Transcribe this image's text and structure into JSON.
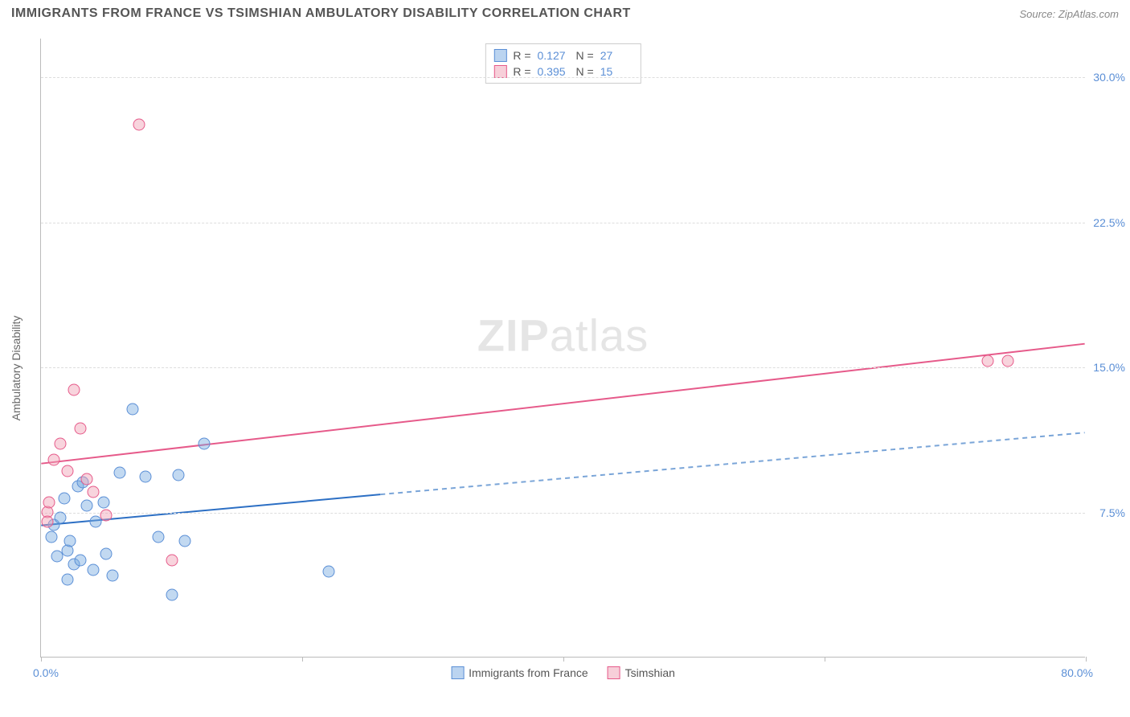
{
  "header": {
    "title": "IMMIGRANTS FROM FRANCE VS TSIMSHIAN AMBULATORY DISABILITY CORRELATION CHART",
    "source": "Source: ZipAtlas.com"
  },
  "chart": {
    "type": "scatter",
    "y_axis_label": "Ambulatory Disability",
    "x_range": [
      0,
      80
    ],
    "y_range": [
      0,
      32
    ],
    "x_labels": {
      "min": "0.0%",
      "max": "80.0%"
    },
    "y_ticks": [
      {
        "value": 7.5,
        "label": "7.5%"
      },
      {
        "value": 15.0,
        "label": "15.0%"
      },
      {
        "value": 22.5,
        "label": "22.5%"
      },
      {
        "value": 30.0,
        "label": "30.0%"
      }
    ],
    "x_tick_positions": [
      0,
      20,
      40,
      60,
      80
    ],
    "colors": {
      "blue_fill": "rgba(120,170,225,0.45)",
      "blue_stroke": "#5b8fd6",
      "pink_fill": "rgba(240,160,180,0.45)",
      "pink_stroke": "#e65a8a",
      "grid": "#ddd",
      "axis": "#bbb",
      "tick_text": "#5b8fd6",
      "label_text": "#666",
      "background": "#ffffff"
    },
    "watermark": {
      "part1": "ZIP",
      "part2": "atlas"
    },
    "legend_top": {
      "series": [
        {
          "color": "blue",
          "r_label": "R =",
          "r_value": "0.127",
          "n_label": "N =",
          "n_value": "27"
        },
        {
          "color": "pink",
          "r_label": "R =",
          "r_value": "0.395",
          "n_label": "N =",
          "n_value": "15"
        }
      ]
    },
    "legend_bottom": {
      "items": [
        {
          "color": "blue",
          "label": "Immigrants from France"
        },
        {
          "color": "pink",
          "label": "Tsimshian"
        }
      ]
    },
    "series_blue": {
      "name": "Immigrants from France",
      "trend": {
        "x1": 0,
        "y1": 6.8,
        "x2_solid": 26,
        "y2_solid": 8.4,
        "x2_dash": 80,
        "y2_dash": 11.6,
        "solid_color": "#2c6fc4",
        "dash_color": "#7aa5d8",
        "width": 2
      },
      "points": [
        {
          "x": 1.0,
          "y": 6.8
        },
        {
          "x": 1.5,
          "y": 7.2
        },
        {
          "x": 2.0,
          "y": 5.5
        },
        {
          "x": 2.2,
          "y": 6.0
        },
        {
          "x": 1.2,
          "y": 5.2
        },
        {
          "x": 2.5,
          "y": 4.8
        },
        {
          "x": 3.0,
          "y": 5.0
        },
        {
          "x": 3.5,
          "y": 7.8
        },
        {
          "x": 4.0,
          "y": 4.5
        },
        {
          "x": 2.8,
          "y": 8.8
        },
        {
          "x": 5.0,
          "y": 5.3
        },
        {
          "x": 5.5,
          "y": 4.2
        },
        {
          "x": 6.0,
          "y": 9.5
        },
        {
          "x": 7.0,
          "y": 12.8
        },
        {
          "x": 8.0,
          "y": 9.3
        },
        {
          "x": 9.0,
          "y": 6.2
        },
        {
          "x": 10.0,
          "y": 3.2
        },
        {
          "x": 10.5,
          "y": 9.4
        },
        {
          "x": 11.0,
          "y": 6.0
        },
        {
          "x": 12.5,
          "y": 11.0
        },
        {
          "x": 22.0,
          "y": 4.4
        },
        {
          "x": 4.2,
          "y": 7.0
        },
        {
          "x": 1.8,
          "y": 8.2
        },
        {
          "x": 3.2,
          "y": 9.0
        },
        {
          "x": 4.8,
          "y": 8.0
        },
        {
          "x": 2.0,
          "y": 4.0
        },
        {
          "x": 0.8,
          "y": 6.2
        }
      ]
    },
    "series_pink": {
      "name": "Tsimshian",
      "trend": {
        "x1": 0,
        "y1": 10.0,
        "x2": 80,
        "y2": 16.2,
        "color": "#e65a8a",
        "width": 2
      },
      "points": [
        {
          "x": 0.5,
          "y": 7.5
        },
        {
          "x": 0.5,
          "y": 7.0
        },
        {
          "x": 1.0,
          "y": 10.2
        },
        {
          "x": 1.5,
          "y": 11.0
        },
        {
          "x": 2.0,
          "y": 9.6
        },
        {
          "x": 2.5,
          "y": 13.8
        },
        {
          "x": 3.0,
          "y": 11.8
        },
        {
          "x": 3.5,
          "y": 9.2
        },
        {
          "x": 4.0,
          "y": 8.5
        },
        {
          "x": 5.0,
          "y": 7.3
        },
        {
          "x": 10.0,
          "y": 5.0
        },
        {
          "x": 7.5,
          "y": 27.5
        },
        {
          "x": 72.5,
          "y": 15.3
        },
        {
          "x": 74.0,
          "y": 15.3
        },
        {
          "x": 0.6,
          "y": 8.0
        }
      ]
    }
  }
}
